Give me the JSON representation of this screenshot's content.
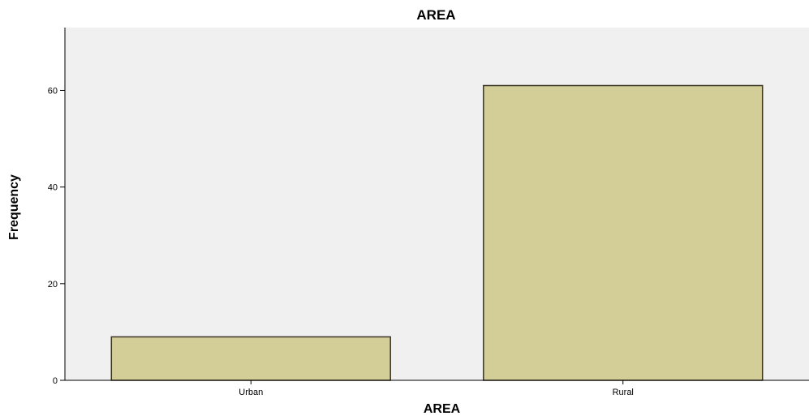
{
  "chart_data": {
    "type": "bar",
    "title": "AREA",
    "xlabel": "AREA",
    "ylabel": "Frequency",
    "categories": [
      "Urban",
      "Rural"
    ],
    "values": [
      9,
      61
    ],
    "ylim": [
      0,
      73
    ],
    "yticks": [
      0,
      20,
      40,
      60
    ],
    "grid": false,
    "legend": "none",
    "colors": {
      "plot_background": "#f0f0f0",
      "bar_fill": "#d3ce97",
      "bar_stroke": "#3c3424",
      "axis": "#000000"
    }
  }
}
